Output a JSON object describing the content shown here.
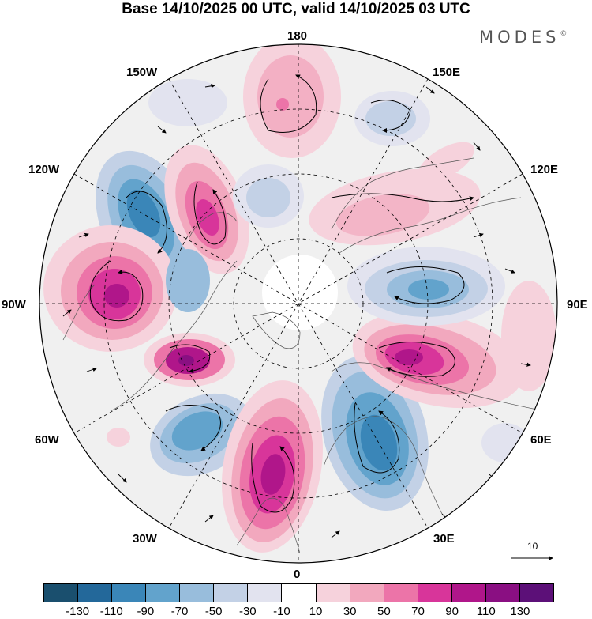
{
  "title": "Base 14/10/2025 00 UTC, valid 14/10/2025 03 UTC",
  "brand": {
    "name": "MODES",
    "mark": "©"
  },
  "longitude_labels": {
    "lon_180": "180",
    "lon_150e": "150E",
    "lon_120e": "120E",
    "lon_90e": "90E",
    "lon_60e": "60E",
    "lon_30e": "30E",
    "lon_0": "0",
    "lon_30w": "30W",
    "lon_60w": "60W",
    "lon_90w": "90W",
    "lon_120w": "120W",
    "lon_150w": "150W"
  },
  "reference_vector": {
    "label": "10"
  },
  "colorbar": {
    "colors": [
      "#1a4f6e",
      "#23689a",
      "#3a86b8",
      "#62a3cc",
      "#98bddc",
      "#c3d1e6",
      "#e2e3ef",
      "#ffffff",
      "#f6d2dc",
      "#f2a8be",
      "#ec74a8",
      "#d8359a",
      "#b0168a",
      "#8a0f82",
      "#5c1078"
    ],
    "ticks": [
      "-130",
      "-110",
      "-90",
      "-70",
      "-50",
      "-30",
      "-10",
      "10",
      "30",
      "50",
      "70",
      "90",
      "110",
      "130"
    ]
  }
}
